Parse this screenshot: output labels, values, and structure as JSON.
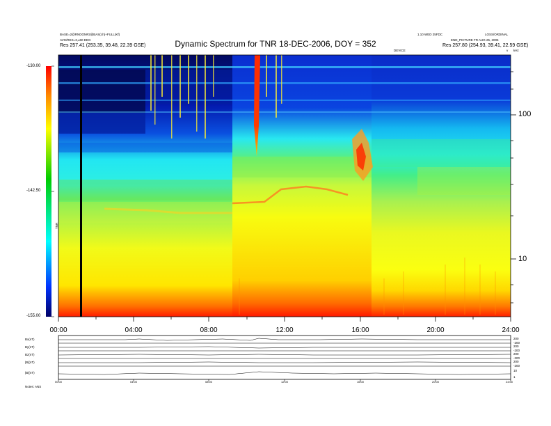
{
  "header": {
    "title": "Dynamic Spectrum for TNR 18-DEC-2006, DOY = 352",
    "left_line1": "BASE=2@RNDOM#2@BAS(r,h)+FULL(Kf)",
    "left_line2": "AVG/RES=3,±60 DEG",
    "left_line3": "Res 257.41 (253.35, 39.48, 22.39 GSE)",
    "center_tag": "DEVICE",
    "right_line1": "1.10 WED 25FDC",
    "right_line2": "LOSS/ORDINAL",
    "right_line3": "END_PICTURE FR AUG 25, 2006",
    "right_line4": "Res 257.80 (254.93, 39.41, 22.59 GSE)",
    "corner_v": "v",
    "corner_unit": "kHz"
  },
  "colorbar": {
    "ticks": [
      "-130.00",
      "-142.50",
      "-155.00"
    ],
    "label": "TNR",
    "colors": [
      "#ff0000",
      "#ffa500",
      "#ffff00",
      "#00dd00",
      "#00ffff",
      "#0000ff",
      "#000055"
    ]
  },
  "chart_data": [
    {
      "type": "heatmap",
      "title": "Dynamic Spectrum for TNR 18-DEC-2006, DOY = 352",
      "x_ticks": [
        "00:00",
        "04:00",
        "08:00",
        "12:00",
        "16:00",
        "20:00",
        "24:00"
      ],
      "xlim": [
        "00:00",
        "24:00"
      ],
      "y_scale": "log",
      "y_unit": "kHz",
      "y_ticks": [
        "100",
        "10"
      ],
      "ylim": [
        4,
        210
      ],
      "color_scale_min": -155.0,
      "color_scale_max": -130.0,
      "features": [
        {
          "name": "intense burst",
          "time": "10:30",
          "freq_range_khz": [
            55,
            210
          ]
        },
        {
          "name": "emission band",
          "time_range": [
            "15:30",
            "16:45"
          ],
          "freq_range_khz": [
            45,
            70
          ]
        },
        {
          "name": "data gap",
          "time": "01:10"
        }
      ]
    },
    {
      "type": "line",
      "panels": [
        {
          "label": "Bx(nT)",
          "right_ticks": [
            "200",
            "-200"
          ]
        },
        {
          "label": "By(nT)",
          "right_ticks": [
            "200",
            "-200"
          ]
        },
        {
          "label": "Bz(nT)",
          "right_ticks": [
            "200",
            "-200"
          ]
        },
        {
          "label": "|B|(nT)",
          "right_ticks": [
            "200",
            "-200"
          ]
        },
        {
          "label": "|B|(nT)",
          "right_ticks": [
            "10",
            "1"
          ]
        }
      ],
      "x_ticks": [
        "00:00",
        "04:00",
        "08:00",
        "12:00",
        "16:00",
        "20:00",
        "24:00"
      ]
    }
  ],
  "footer": {
    "note": "Notes: ANS"
  }
}
